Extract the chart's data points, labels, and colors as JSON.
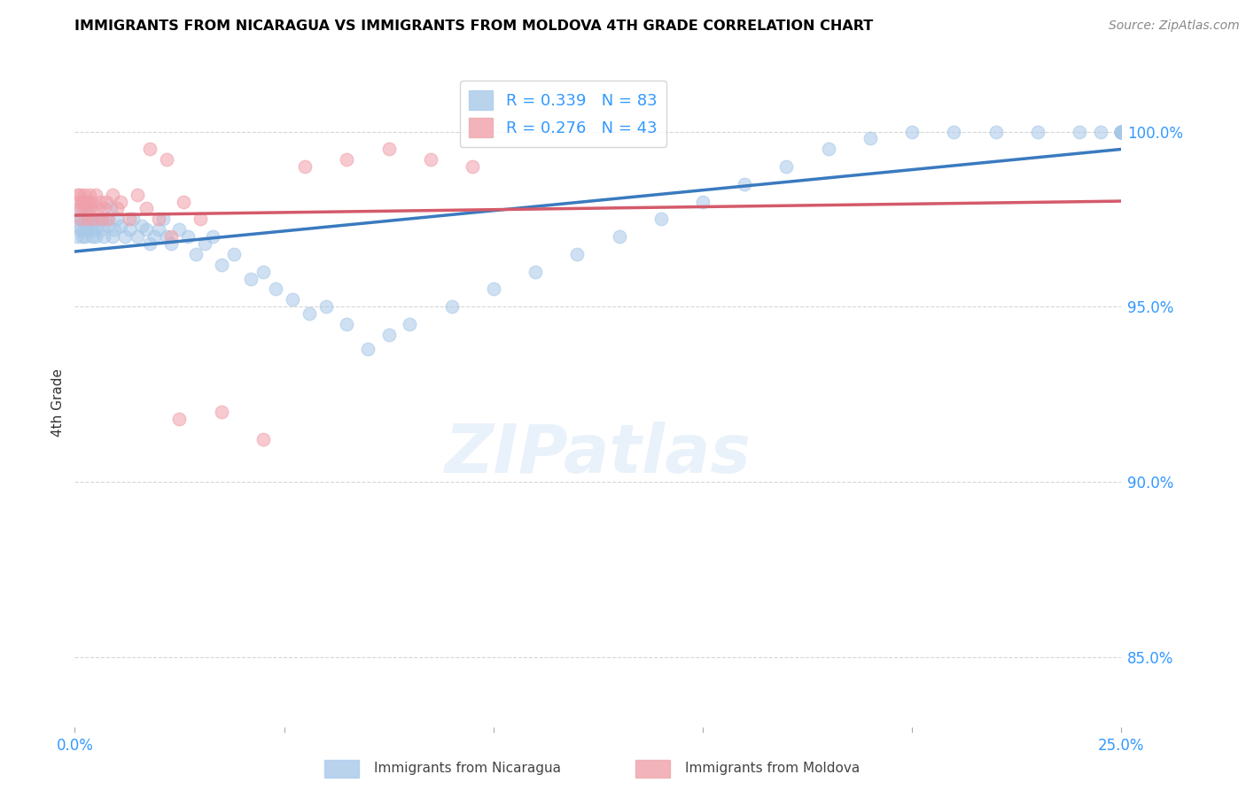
{
  "title": "IMMIGRANTS FROM NICARAGUA VS IMMIGRANTS FROM MOLDOVA 4TH GRADE CORRELATION CHART",
  "source": "Source: ZipAtlas.com",
  "ylabel": "4th Grade",
  "ylim": [
    83.0,
    101.5
  ],
  "xlim": [
    0.0,
    25.0
  ],
  "ylabel_right_ticks": [
    85.0,
    90.0,
    95.0,
    100.0
  ],
  "ylabel_right_labels": [
    "85.0%",
    "90.0%",
    "95.0%",
    "100.0%"
  ],
  "nicaragua_R": 0.339,
  "nicaragua_N": 83,
  "moldova_R": 0.276,
  "moldova_N": 43,
  "nicaragua_color": "#a8c8e8",
  "moldova_color": "#f0a0aa",
  "nicaragua_line_color": "#3a7abf",
  "moldova_line_color": "#d45a6a",
  "legend_nicaragua": "Immigrants from Nicaragua",
  "legend_moldova": "Immigrants from Moldova",
  "nicaragua_x": [
    0.05,
    0.08,
    0.1,
    0.12,
    0.15,
    0.18,
    0.2,
    0.22,
    0.25,
    0.28,
    0.3,
    0.32,
    0.35,
    0.38,
    0.4,
    0.42,
    0.45,
    0.5,
    0.55,
    0.6,
    0.65,
    0.7,
    0.75,
    0.8,
    0.85,
    0.9,
    0.95,
    1.0,
    1.1,
    1.2,
    1.3,
    1.4,
    1.5,
    1.6,
    1.7,
    1.8,
    1.9,
    2.0,
    2.1,
    2.2,
    2.3,
    2.5,
    2.7,
    2.9,
    3.1,
    3.3,
    3.5,
    3.8,
    4.2,
    4.5,
    4.8,
    5.2,
    5.6,
    6.0,
    6.5,
    7.0,
    7.5,
    8.0,
    9.0,
    10.0,
    11.0,
    12.0,
    13.0,
    14.0,
    15.0,
    16.0,
    17.0,
    18.0,
    19.0,
    20.0,
    21.0,
    22.0,
    23.0,
    24.0,
    24.5,
    25.0,
    25.0,
    25.0,
    25.0,
    25.0,
    25.0,
    25.0,
    25.0
  ],
  "nicaragua_y": [
    97.0,
    97.3,
    97.5,
    97.2,
    97.8,
    97.0,
    97.5,
    97.2,
    97.0,
    97.3,
    97.5,
    97.2,
    97.8,
    97.3,
    97.5,
    97.0,
    97.2,
    97.0,
    97.3,
    97.5,
    97.2,
    97.0,
    97.5,
    97.3,
    97.8,
    97.0,
    97.2,
    97.5,
    97.3,
    97.0,
    97.2,
    97.5,
    97.0,
    97.3,
    97.2,
    96.8,
    97.0,
    97.2,
    97.5,
    97.0,
    96.8,
    97.2,
    97.0,
    96.5,
    96.8,
    97.0,
    96.2,
    96.5,
    95.8,
    96.0,
    95.5,
    95.2,
    94.8,
    95.0,
    94.5,
    93.8,
    94.2,
    94.5,
    95.0,
    95.5,
    96.0,
    96.5,
    97.0,
    97.5,
    98.0,
    98.5,
    99.0,
    99.5,
    99.8,
    100.0,
    100.0,
    100.0,
    100.0,
    100.0,
    100.0,
    100.0,
    100.0,
    100.0,
    100.0,
    100.0,
    100.0,
    100.0,
    100.0
  ],
  "moldova_x": [
    0.05,
    0.08,
    0.1,
    0.12,
    0.15,
    0.18,
    0.2,
    0.22,
    0.25,
    0.28,
    0.3,
    0.32,
    0.35,
    0.38,
    0.4,
    0.45,
    0.5,
    0.55,
    0.6,
    0.65,
    0.7,
    0.75,
    0.8,
    0.9,
    1.0,
    1.1,
    1.3,
    1.5,
    1.7,
    2.0,
    2.3,
    2.6,
    3.0,
    3.5,
    4.5,
    5.5,
    6.5,
    7.5,
    8.5,
    9.5,
    2.5,
    2.2,
    1.8
  ],
  "moldova_y": [
    98.2,
    98.0,
    97.8,
    98.2,
    97.5,
    98.0,
    97.8,
    98.2,
    98.0,
    97.8,
    97.5,
    98.0,
    98.2,
    97.8,
    98.0,
    97.5,
    98.2,
    97.8,
    98.0,
    97.5,
    97.8,
    98.0,
    97.5,
    98.2,
    97.8,
    98.0,
    97.5,
    98.2,
    97.8,
    97.5,
    97.0,
    98.0,
    97.5,
    92.0,
    91.2,
    99.0,
    99.2,
    99.5,
    99.2,
    99.0,
    91.8,
    99.2,
    99.5
  ]
}
